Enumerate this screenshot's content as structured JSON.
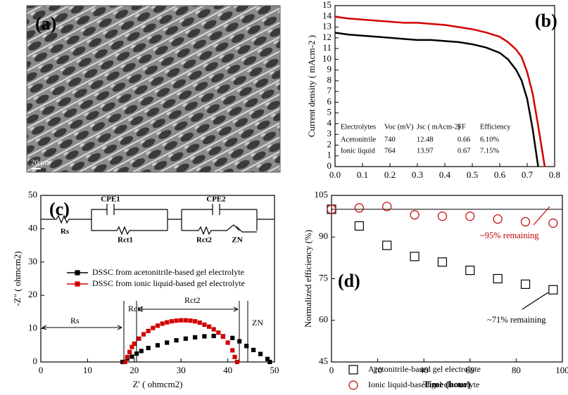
{
  "image_panel": {
    "label": "(a)",
    "scale_bar": "20 μm"
  },
  "chart_data": [
    {
      "type": "line",
      "label": "(b)",
      "y_label": "Current density ( mAcm-2 )",
      "xlim": [
        0,
        0.8
      ],
      "xticks": [
        {
          "value": 0,
          "label": "0.0"
        },
        0.1,
        0.2,
        0.3,
        0.4,
        0.5,
        0.6,
        0.7,
        0.8
      ],
      "ylim": [
        0,
        15
      ],
      "yticks": [
        0,
        1,
        2,
        3,
        4,
        5,
        6,
        7,
        8,
        9,
        10,
        11,
        12,
        13,
        14,
        15
      ],
      "series": [
        {
          "color": "#000000",
          "x": [
            0,
            0.05,
            0.1,
            0.15,
            0.2,
            0.25,
            0.3,
            0.35,
            0.4,
            0.45,
            0.5,
            0.55,
            0.6,
            0.63,
            0.66,
            0.68,
            0.7,
            0.72,
            0.74
          ],
          "values": [
            12.48,
            12.3,
            12.2,
            12.1,
            12.0,
            11.9,
            11.8,
            11.8,
            11.7,
            11.6,
            11.4,
            11.1,
            10.6,
            10.0,
            9.0,
            8.0,
            6.3,
            3.5,
            0
          ]
        },
        {
          "color": "#d40000",
          "x": [
            0,
            0.05,
            0.1,
            0.15,
            0.2,
            0.25,
            0.3,
            0.35,
            0.4,
            0.45,
            0.5,
            0.55,
            0.6,
            0.63,
            0.66,
            0.68,
            0.7,
            0.72,
            0.74,
            0.764
          ],
          "values": [
            13.97,
            13.8,
            13.7,
            13.6,
            13.5,
            13.4,
            13.4,
            13.3,
            13.2,
            13.0,
            12.8,
            12.5,
            12.1,
            11.6,
            10.9,
            10.2,
            8.8,
            6.8,
            3.8,
            0
          ]
        }
      ],
      "table": {
        "header": [
          "Electrolytes",
          "Voc (mV)",
          "Jsc ( mAcm-2)",
          "FF",
          "Efficiency"
        ],
        "rows": [
          [
            "Acetonitrile",
            "740",
            "12.48",
            "0.66",
            "6.10%"
          ],
          [
            "Ionic liquid",
            "764",
            "13.97",
            "0.67",
            "7.15%"
          ]
        ]
      }
    },
    {
      "type": "scatter",
      "label": "(c)",
      "x_label": "Z' ( ohmcm2)",
      "y_label": "-Z\" ( ohmcm2)",
      "xlim": [
        0,
        50
      ],
      "xticks": [
        0,
        10,
        20,
        30,
        40,
        50
      ],
      "ylim": [
        0,
        50
      ],
      "yticks": [
        0,
        10,
        20,
        30,
        40,
        50
      ],
      "series": [
        {
          "name": "DSSC from acetonitrile-based gel electrolyte",
          "color": "#000000",
          "marker": "square",
          "filled": true,
          "x": [
            17.5,
            18.5,
            19.5,
            20.5,
            21.5,
            23,
            25,
            27,
            29,
            31,
            33,
            35,
            37,
            39,
            41,
            42.5,
            44,
            45.5,
            47,
            48.5,
            49
          ],
          "values": [
            0,
            1.0,
            1.6,
            2.5,
            3.3,
            4.2,
            5.0,
            5.8,
            6.5,
            7.0,
            7.4,
            7.7,
            7.8,
            7.7,
            7.2,
            6.2,
            4.8,
            3.6,
            2.4,
            0.9,
            0
          ]
        },
        {
          "name": "DSSC from ionic liquid-based gel electrolyte",
          "color": "#d40000",
          "marker": "square",
          "filled": true,
          "x": [
            18,
            18.5,
            19,
            19.5,
            20,
            21,
            22,
            23,
            24,
            25,
            26,
            27,
            28,
            29,
            30,
            31,
            32,
            33,
            34,
            35,
            36,
            37,
            38,
            39,
            40,
            41,
            41.5,
            42
          ],
          "values": [
            0,
            1.5,
            3,
            4.5,
            5.5,
            7,
            8.3,
            9.3,
            10.2,
            10.9,
            11.5,
            11.9,
            12.2,
            12.4,
            12.5,
            12.5,
            12.4,
            12.2,
            11.8,
            11.2,
            10.6,
            9.8,
            8.8,
            7.6,
            5.8,
            3.5,
            1.5,
            0
          ]
        }
      ],
      "circuit_labels": [
        "CPE1",
        "CPE2",
        "Rs",
        "Rct1",
        "Rct2",
        "ZN"
      ],
      "annotations": [
        "Rs",
        "Rct1",
        "Rct2",
        "ZN"
      ]
    },
    {
      "type": "scatter",
      "label": "(d)",
      "x_label": "Time (hour)",
      "y_label": "Normalized efficiency (%)",
      "xlim": [
        0,
        100
      ],
      "xticks": [
        0,
        20,
        40,
        60,
        80,
        100
      ],
      "ylim": [
        45,
        105
      ],
      "yticks": [
        45,
        60,
        75,
        90,
        105
      ],
      "reference_line": 100,
      "series": [
        {
          "name": "Acetonitrile-based gel electrolyte",
          "color": "#000000",
          "marker": "square",
          "filled": false,
          "x": [
            0,
            12,
            24,
            36,
            48,
            60,
            72,
            84,
            96
          ],
          "values": [
            100,
            94,
            87,
            83,
            81,
            78,
            75,
            73,
            71
          ]
        },
        {
          "name": "Ionic liquid-based gel electrolyte",
          "color": "#c00000",
          "marker": "circle",
          "filled": false,
          "x": [
            0,
            12,
            24,
            36,
            48,
            60,
            72,
            84,
            96
          ],
          "values": [
            100,
            100.5,
            101,
            98,
            97.5,
            97.5,
            96.5,
            95.5,
            95
          ]
        }
      ],
      "annotations": [
        {
          "text": "~95% remaining",
          "color": "#c00000"
        },
        {
          "text": "~71% remaining",
          "color": "#000000"
        }
      ]
    }
  ]
}
